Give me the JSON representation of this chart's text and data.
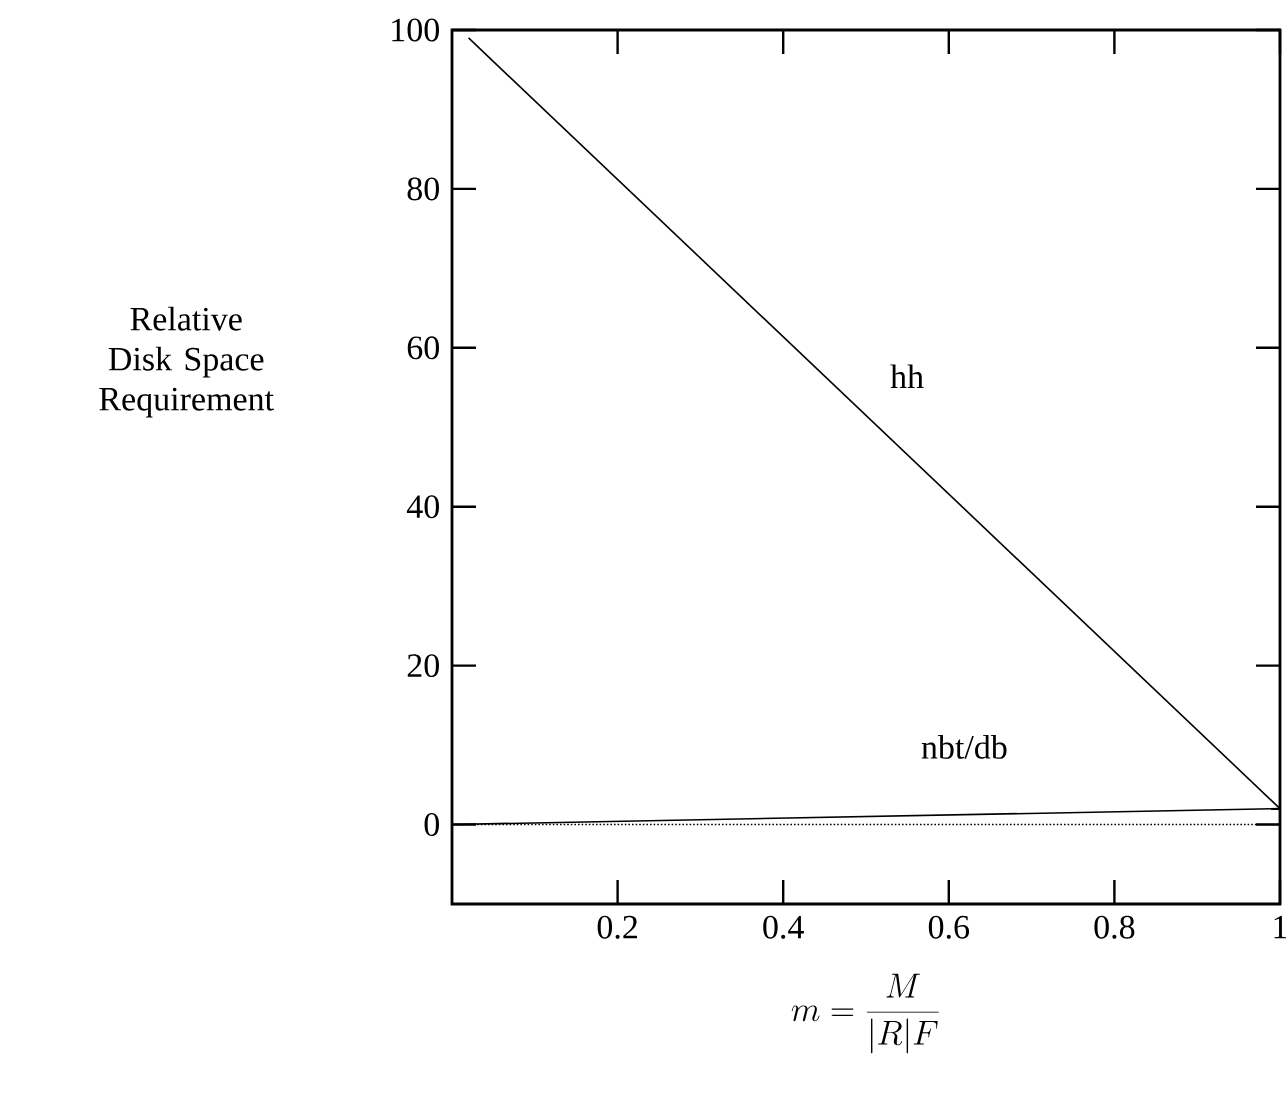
{
  "chart_data": {
    "type": "line",
    "xlabel": "m = \\frac{M}{|R|F}",
    "ylabel": "Relative Disk Space Requirement",
    "xlim": [
      0,
      1
    ],
    "ylim": [
      -10,
      100
    ],
    "xticks": [
      0.2,
      0.4,
      0.6,
      0.8,
      1
    ],
    "yticks": [
      0,
      20,
      40,
      60,
      80,
      100
    ],
    "series": [
      {
        "name": "hh",
        "color": "#000000",
        "x": [
          0.02,
          1
        ],
        "values": [
          99,
          2
        ],
        "line_style": "solid"
      },
      {
        "name": "nbt/db",
        "color": "#000000",
        "x": [
          0,
          1
        ],
        "values": [
          0,
          2
        ],
        "line_style": "solid"
      },
      {
        "color": "#000000",
        "x": [
          0,
          1
        ],
        "values": [
          0,
          0
        ],
        "line_style": "dotted"
      }
    ]
  }
}
